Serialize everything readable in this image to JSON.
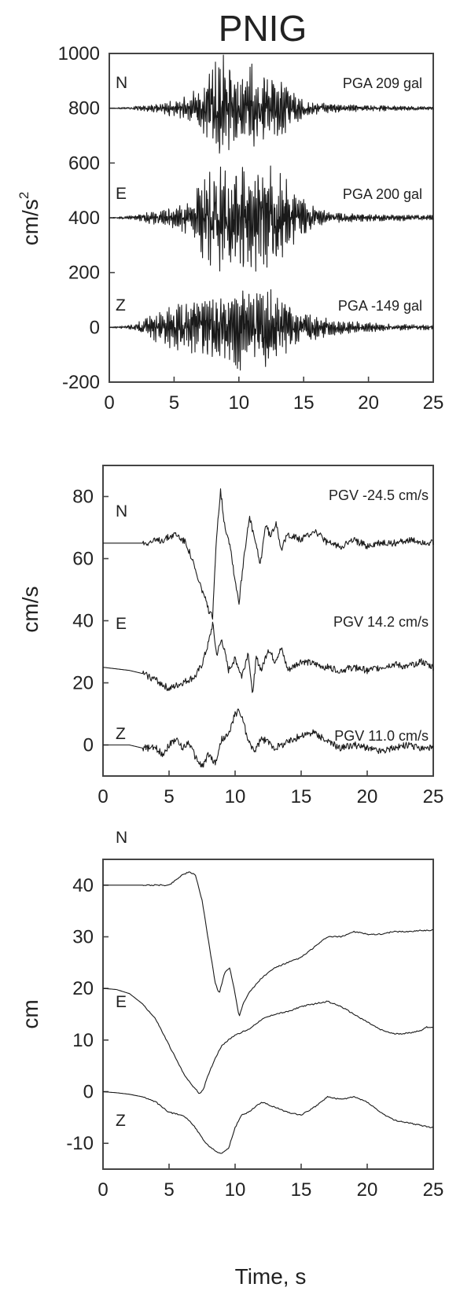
{
  "figure": {
    "title": "PNIG"
  },
  "chart_data": [
    {
      "type": "line",
      "quantity": "acceleration",
      "ylabel": "cm/s",
      "ylabel_sup": "2",
      "xlabel": "",
      "xlim": [
        0,
        25
      ],
      "ylim": [
        -200,
        1000
      ],
      "xticks": [
        0,
        5,
        10,
        15,
        20,
        25
      ],
      "yticks": [
        -200,
        0,
        200,
        400,
        600,
        800,
        1000
      ],
      "series": [
        {
          "name": "N",
          "offset": 800,
          "annotation": "PGA 209 gal",
          "x": [
            0,
            2,
            3,
            4,
            5,
            6,
            6.5,
            7,
            7.5,
            8,
            8.5,
            9,
            9.5,
            10,
            10.5,
            11,
            11.5,
            12,
            12.5,
            13,
            13.5,
            14,
            15,
            16,
            17,
            18,
            20,
            22,
            25
          ],
          "envelope": [
            0,
            6,
            12,
            18,
            28,
            40,
            55,
            75,
            110,
            130,
            190,
            150,
            120,
            120,
            100,
            160,
            115,
            100,
            90,
            100,
            85,
            55,
            35,
            22,
            16,
            12,
            10,
            8,
            5
          ]
        },
        {
          "name": "E",
          "offset": 400,
          "annotation": "PGA 200 gal",
          "x": [
            0,
            2,
            3,
            4,
            5,
            6,
            6.5,
            7,
            7.5,
            8,
            8.5,
            9,
            9.5,
            10,
            10.5,
            11,
            11.5,
            12,
            12.5,
            13,
            13.5,
            14,
            15,
            16,
            17,
            18,
            20,
            22,
            25
          ],
          "envelope": [
            0,
            8,
            18,
            25,
            35,
            50,
            75,
            110,
            150,
            160,
            180,
            140,
            150,
            170,
            200,
            190,
            175,
            180,
            185,
            170,
            140,
            100,
            60,
            35,
            20,
            15,
            12,
            10,
            8
          ]
        },
        {
          "name": "Z",
          "offset": 0,
          "annotation": "PGA -149 gal",
          "x": [
            0,
            2,
            3,
            4,
            5,
            6,
            6.5,
            7,
            7.5,
            8,
            8.5,
            9,
            9.5,
            10,
            10.5,
            11,
            11.5,
            12,
            12.5,
            13,
            13.5,
            14,
            15,
            16,
            17,
            18,
            20,
            22,
            25
          ],
          "envelope": [
            0,
            10,
            40,
            55,
            70,
            75,
            80,
            90,
            100,
            115,
            110,
            100,
            110,
            149,
            120,
            110,
            115,
            130,
            120,
            100,
            90,
            75,
            55,
            40,
            28,
            20,
            15,
            10,
            8
          ]
        }
      ]
    },
    {
      "type": "line",
      "quantity": "velocity",
      "ylabel": "cm/s",
      "xlabel": "",
      "xlim": [
        0,
        25
      ],
      "ylim": [
        -10,
        90
      ],
      "xticks": [
        0,
        5,
        10,
        15,
        20,
        25
      ],
      "yticks": [
        0,
        20,
        40,
        60,
        80
      ],
      "series": [
        {
          "name": "N",
          "annotation": "PGV -24.5 cm/s",
          "x": [
            0,
            3,
            4.5,
            5.5,
            6.3,
            6.8,
            7.2,
            7.6,
            8.0,
            8.3,
            8.6,
            8.9,
            9.2,
            9.6,
            10.0,
            10.3,
            10.7,
            11.1,
            11.5,
            11.9,
            12.3,
            12.7,
            13.1,
            13.5,
            14,
            15,
            16,
            17,
            18,
            19,
            20,
            21,
            22,
            23,
            25
          ],
          "y": [
            65,
            65,
            66,
            68,
            65,
            59,
            53,
            49,
            43,
            41,
            68,
            82,
            71,
            65,
            53,
            46,
            62,
            73,
            66,
            58,
            71,
            67,
            72,
            63,
            68,
            66,
            69,
            65,
            64,
            66,
            64,
            65,
            65,
            66,
            65
          ]
        },
        {
          "name": "E",
          "annotation": "PGV 14.2 cm/s",
          "x": [
            0,
            2,
            3,
            4,
            5,
            6,
            7,
            7.5,
            8,
            8.3,
            8.6,
            9,
            9.5,
            10,
            10.5,
            11,
            11.3,
            11.6,
            12,
            12.5,
            13,
            13.5,
            14,
            15,
            16,
            17,
            18,
            19,
            20,
            21,
            22,
            23,
            24,
            25
          ],
          "y": [
            25,
            24,
            23,
            21,
            18,
            20,
            22,
            26,
            33,
            39,
            29,
            34,
            24,
            28,
            22,
            30,
            16,
            28,
            24,
            31,
            27,
            31,
            24,
            27,
            26,
            25,
            24,
            25,
            24,
            25,
            26,
            25,
            27,
            25
          ]
        },
        {
          "name": "Z",
          "annotation": "PGV 11.0 cm/s",
          "x": [
            0,
            2,
            3,
            4,
            4.5,
            5,
            5.5,
            6,
            6.5,
            7,
            7.5,
            8,
            8.5,
            9,
            9.5,
            10,
            10.3,
            10.6,
            11,
            11.5,
            12,
            12.5,
            13,
            14,
            15,
            16,
            17,
            18,
            19,
            20,
            21,
            22,
            23,
            24,
            25
          ],
          "y": [
            0,
            0,
            -1,
            -1,
            -3,
            0,
            2,
            -1,
            1,
            -4,
            -7,
            -3,
            -6,
            2,
            3,
            10,
            11,
            8,
            1,
            -2,
            2,
            1,
            -1,
            1,
            3,
            4,
            1,
            -1,
            0,
            -1,
            -2,
            -1,
            0,
            -1,
            -1
          ]
        }
      ]
    },
    {
      "type": "line",
      "quantity": "displacement",
      "ylabel": "cm",
      "xlabel": "Time, s",
      "xlim": [
        0,
        25
      ],
      "ylim": [
        -15,
        45
      ],
      "xticks": [
        0,
        5,
        10,
        15,
        20,
        25
      ],
      "yticks": [
        -10,
        0,
        10,
        20,
        30,
        40
      ],
      "series": [
        {
          "name": "N",
          "x": [
            0,
            3,
            5,
            5.5,
            6,
            6.5,
            7,
            7.5,
            8,
            8.5,
            8.8,
            9.2,
            9.6,
            10,
            10.3,
            10.6,
            11,
            12,
            13,
            14,
            15,
            16,
            17,
            18,
            19,
            20,
            21,
            22,
            23,
            24,
            25
          ],
          "y": [
            40,
            40,
            40,
            41,
            42,
            42.5,
            42,
            37,
            29,
            21,
            19,
            23,
            24,
            19,
            14.5,
            17,
            19,
            22,
            24,
            25,
            26,
            28,
            30,
            30,
            31,
            30.5,
            30.5,
            31,
            31,
            31.2,
            31.3
          ]
        },
        {
          "name": "E",
          "x": [
            0,
            1,
            2,
            3,
            4,
            5,
            5.5,
            6,
            6.5,
            7,
            7.3,
            7.6,
            8,
            8.5,
            9,
            9.5,
            10,
            11,
            12,
            13,
            14,
            15,
            16,
            17,
            18,
            19,
            20,
            21,
            22,
            23,
            24,
            24.5,
            25
          ],
          "y": [
            20,
            19.8,
            19,
            17,
            14,
            9,
            6.5,
            4,
            2,
            0.5,
            -0.4,
            0.5,
            3.5,
            6.5,
            9,
            10,
            11,
            12,
            14,
            15,
            15.5,
            16.5,
            17,
            17.5,
            16.5,
            15,
            13.5,
            12,
            11.2,
            11.3,
            11.8,
            12.5,
            12.5
          ]
        },
        {
          "name": "Z",
          "x": [
            0,
            1,
            2,
            3,
            4,
            5,
            5.5,
            6,
            6.5,
            7,
            7.5,
            8,
            8.5,
            9,
            9.5,
            10,
            10.5,
            11,
            12,
            13,
            14,
            15,
            16,
            17,
            18,
            19,
            20,
            21,
            22,
            23,
            24,
            25
          ],
          "y": [
            0,
            -0.2,
            -0.5,
            -1,
            -2,
            -4,
            -4.3,
            -4.5,
            -5.5,
            -7,
            -9,
            -10.5,
            -11.5,
            -12,
            -11,
            -7,
            -4.5,
            -4,
            -2,
            -3,
            -4,
            -4.5,
            -3,
            -1,
            -1.5,
            -1,
            -2,
            -4,
            -5.5,
            -6,
            -6.5,
            -7
          ]
        }
      ]
    }
  ]
}
